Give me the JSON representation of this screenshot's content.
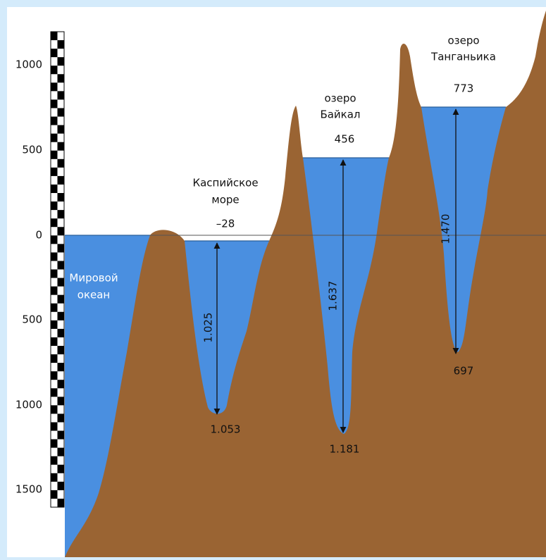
{
  "scale": {
    "labels": [
      "1000",
      "500",
      "0",
      "500",
      "1000",
      "1500"
    ]
  },
  "ocean": {
    "name": [
      "Мировой",
      "океан"
    ]
  },
  "lakes": [
    {
      "name": [
        "Каспийское",
        "море"
      ],
      "surface": "–28",
      "depth": "1.025",
      "bottom": "1.053"
    },
    {
      "name": [
        "озеро",
        "Байкал"
      ],
      "surface": "456",
      "depth": "1.637",
      "bottom": "1.181"
    },
    {
      "name": [
        "озеро",
        "Танганьика"
      ],
      "surface": "773",
      "depth": "1.470",
      "bottom": "697"
    }
  ]
}
